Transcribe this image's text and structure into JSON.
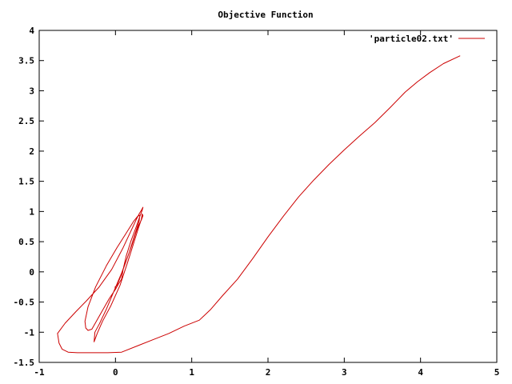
{
  "chart_data": {
    "type": "line",
    "title": "Objective Function",
    "xlabel": "",
    "ylabel": "",
    "xlim": [
      -1,
      5
    ],
    "ylim": [
      -1.5,
      4
    ],
    "x_ticks": [
      "-1",
      "0",
      "1",
      "2",
      "3",
      "4",
      "5"
    ],
    "y_ticks": [
      "-1.5",
      "-1",
      "-0.5",
      "0",
      "0.5",
      "1",
      "1.5",
      "2",
      "2.5",
      "3",
      "3.5",
      "4"
    ],
    "grid": false,
    "legend_position": "top-right",
    "series": [
      {
        "name": "'particle02.txt'",
        "color": "#cc0000",
        "points": [
          [
            4.52,
            3.58
          ],
          [
            4.3,
            3.45
          ],
          [
            4.12,
            3.3
          ],
          [
            3.96,
            3.15
          ],
          [
            3.8,
            2.98
          ],
          [
            3.6,
            2.72
          ],
          [
            3.4,
            2.47
          ],
          [
            3.2,
            2.25
          ],
          [
            3.0,
            2.02
          ],
          [
            2.8,
            1.78
          ],
          [
            2.6,
            1.52
          ],
          [
            2.4,
            1.24
          ],
          [
            2.2,
            0.92
          ],
          [
            2.0,
            0.58
          ],
          [
            1.8,
            0.22
          ],
          [
            1.6,
            -0.12
          ],
          [
            1.4,
            -0.4
          ],
          [
            1.25,
            -0.62
          ],
          [
            1.1,
            -0.8
          ],
          [
            0.9,
            -0.9
          ],
          [
            0.7,
            -1.02
          ],
          [
            0.5,
            -1.12
          ],
          [
            0.3,
            -1.22
          ],
          [
            0.08,
            -1.33
          ],
          [
            -0.1,
            -1.34
          ],
          [
            -0.3,
            -1.34
          ],
          [
            -0.5,
            -1.34
          ],
          [
            -0.62,
            -1.33
          ],
          [
            -0.7,
            -1.28
          ],
          [
            -0.74,
            -1.18
          ],
          [
            -0.76,
            -1.02
          ],
          [
            -0.66,
            -0.85
          ],
          [
            -0.52,
            -0.66
          ],
          [
            -0.38,
            -0.48
          ],
          [
            -0.22,
            -0.26
          ],
          [
            -0.05,
            0.04
          ],
          [
            0.1,
            0.4
          ],
          [
            0.2,
            0.67
          ],
          [
            0.27,
            0.86
          ],
          [
            0.31,
            0.96
          ],
          [
            0.34,
            1.02
          ],
          [
            0.36,
            1.07
          ],
          [
            0.35,
            1.02
          ],
          [
            0.32,
            0.92
          ],
          [
            0.27,
            0.74
          ],
          [
            0.2,
            0.5
          ],
          [
            0.14,
            0.26
          ],
          [
            0.1,
            0.04
          ],
          [
            0.08,
            -0.12
          ],
          [
            0.04,
            -0.2
          ],
          [
            0.0,
            -0.29
          ],
          [
            -0.08,
            -0.44
          ],
          [
            -0.18,
            -0.66
          ],
          [
            -0.26,
            -0.84
          ],
          [
            -0.31,
            -0.95
          ],
          [
            -0.36,
            -0.97
          ],
          [
            -0.39,
            -0.93
          ],
          [
            -0.4,
            -0.82
          ],
          [
            -0.36,
            -0.58
          ],
          [
            -0.26,
            -0.25
          ],
          [
            -0.12,
            0.1
          ],
          [
            0.02,
            0.4
          ],
          [
            0.14,
            0.64
          ],
          [
            0.24,
            0.84
          ],
          [
            0.29,
            0.92
          ],
          [
            0.32,
            0.94
          ],
          [
            0.31,
            0.84
          ],
          [
            0.26,
            0.64
          ],
          [
            0.18,
            0.32
          ],
          [
            0.08,
            -0.02
          ],
          [
            -0.02,
            -0.32
          ],
          [
            -0.12,
            -0.62
          ],
          [
            -0.21,
            -0.86
          ],
          [
            -0.27,
            -1.0
          ],
          [
            -0.28,
            -1.16
          ],
          [
            -0.24,
            -1.02
          ],
          [
            -0.17,
            -0.82
          ],
          [
            -0.06,
            -0.56
          ],
          [
            0.06,
            -0.22
          ],
          [
            0.16,
            0.16
          ],
          [
            0.24,
            0.48
          ],
          [
            0.3,
            0.72
          ],
          [
            0.34,
            0.87
          ],
          [
            0.35,
            0.96
          ],
          [
            0.36,
            0.93
          ],
          [
            0.34,
            0.86
          ],
          [
            0.3,
            0.76
          ],
          [
            0.26,
            0.62
          ],
          [
            0.22,
            0.46
          ],
          [
            0.18,
            0.32
          ],
          [
            0.14,
            0.18
          ],
          [
            0.1,
            0.04
          ],
          [
            0.06,
            -0.1
          ],
          [
            0.02,
            -0.22
          ],
          [
            -0.01,
            -0.26
          ]
        ]
      }
    ]
  }
}
